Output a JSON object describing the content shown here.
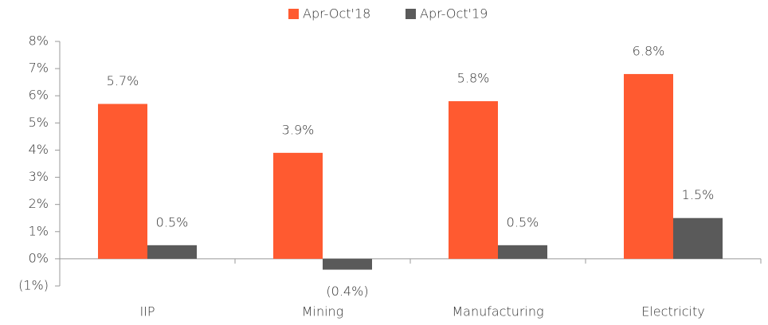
{
  "chart_data": {
    "type": "bar",
    "categories": [
      "IIP",
      "Mining",
      "Manufacturing",
      "Electricity"
    ],
    "series": [
      {
        "name": "Apr-Oct'18",
        "color": "#ff5a30",
        "values": [
          5.7,
          3.9,
          5.8,
          6.8
        ],
        "value_labels": [
          "5.7%",
          "3.9%",
          "5.8%",
          "6.8%"
        ]
      },
      {
        "name": "Apr-Oct'19",
        "color": "#5a5a5a",
        "values": [
          0.5,
          -0.4,
          0.5,
          1.5
        ],
        "value_labels": [
          "0.5%",
          "(0.4%)",
          "0.5%",
          "1.5%"
        ]
      }
    ],
    "ylim": [
      -1,
      8
    ],
    "yticks": [
      {
        "value": -1,
        "label": "(1%)"
      },
      {
        "value": 0,
        "label": "0%"
      },
      {
        "value": 1,
        "label": "1%"
      },
      {
        "value": 2,
        "label": "2%"
      },
      {
        "value": 3,
        "label": "3%"
      },
      {
        "value": 4,
        "label": "4%"
      },
      {
        "value": 5,
        "label": "5%"
      },
      {
        "value": 6,
        "label": "6%"
      },
      {
        "value": 7,
        "label": "7%"
      },
      {
        "value": 8,
        "label": "8%"
      }
    ],
    "legend": "top"
  }
}
